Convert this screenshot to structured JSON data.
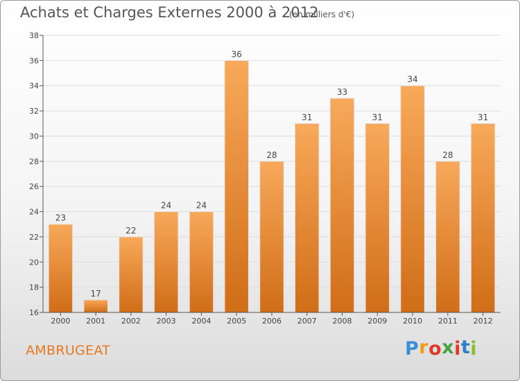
{
  "title": "Achats et Charges Externes 2000 à 2012",
  "subtitle": "(en milliers d'€)",
  "city": "AMBRUGEAT",
  "logo": {
    "letters": [
      "P",
      "r",
      "o",
      "x",
      "i",
      "t",
      "i"
    ],
    "colors": [
      "#3a8fd6",
      "#f29b1e",
      "#e0392b",
      "#43a340",
      "#e0392b",
      "#2f7fc8",
      "#8bbf2a"
    ]
  },
  "colors": {
    "bar": "#f0902f",
    "bar_light": "#f8a95a",
    "bar_dark": "#d06d18",
    "grid": "#dddddd",
    "axis": "#555555"
  },
  "chart_data": {
    "type": "bar",
    "categories": [
      "2000",
      "2001",
      "2002",
      "2003",
      "2004",
      "2005",
      "2006",
      "2007",
      "2008",
      "2009",
      "2010",
      "2011",
      "2012"
    ],
    "values": [
      23,
      17,
      22,
      24,
      24,
      36,
      28,
      31,
      33,
      31,
      34,
      28,
      31
    ],
    "yticks": [
      16,
      18,
      20,
      22,
      24,
      26,
      28,
      30,
      32,
      34,
      36,
      38
    ],
    "ylim": [
      16,
      38
    ],
    "grid": true,
    "title": "Achats et Charges Externes 2000 à 2012",
    "subtitle": "(en milliers d'€)"
  }
}
